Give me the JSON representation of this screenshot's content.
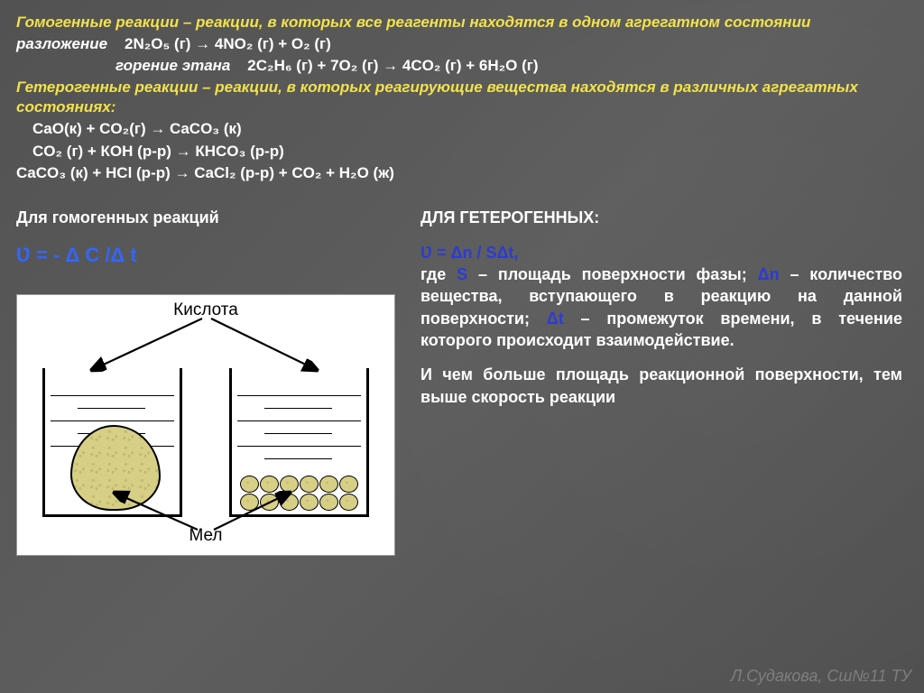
{
  "definitions": {
    "homo_title_prefix": "Гомогенные",
    "homo_title_rest": " реакции – реакции, в которых все реагенты находятся в одном агрегатном состоянии",
    "decomp_label": "разложение",
    "decomp_eq": "2N₂O₅ (г) → 4NO₂ (г) + O₂ (г)",
    "combust_label": "горение этана",
    "combust_eq": "2C₂H₆ (г) + 7O₂ (г) → 4CO₂ (г) + 6H₂O (г)",
    "hetero_title_prefix": "Гетерогенные",
    "hetero_title_rest": " реакции – реакции, в которых реагирующие вещества находятся в различных агрегатных состояниях:",
    "eq1": "CaO(к) + CO₂(г) → CaCO₃ (к)",
    "eq2": "CO₂ (г) + КОН (р-р) → КНСO₃ (р-р)",
    "eq3": "CaCO₃ (к) + HCl (р-р) → CaCl₂ (р-р) + CO₂ + H₂O (ж)"
  },
  "homo_section": {
    "title": "Для гомогенных реакций",
    "formula": "Ʋ = - Δ C /Δ t"
  },
  "hetero_section": {
    "title": "ДЛЯ ГЕТЕРОГЕННЫХ:",
    "formula": "Ʋ =  Δn / SΔt,",
    "explain_pre": "где",
    "s_label": "S",
    "s_desc": " – площадь поверхности фазы; ",
    "dn_label": "Δn",
    "dn_desc": " – количество вещества, вступающего в реакцию на данной поверхности; ",
    "dt_label": "Δt",
    "dt_desc": " – промежуток времени, в течение которого происходит взаимодействие.",
    "conclusion": "И чем больше площадь реакционной поверхности, тем выше скорость реакции"
  },
  "diagram": {
    "top_label": "Кислота",
    "bottom_label": "Мел",
    "pebble_count": 12,
    "colors": {
      "rock_fill": "#d6cf85",
      "rock_speck": "#c0b86e",
      "line": "#000000",
      "bg": "#ffffff"
    }
  },
  "watermark": "Л.Судакова, Сш№11 ТУ",
  "style": {
    "bg": "#5a5a5a",
    "yellow": "#f2e24a",
    "blue": "#2b3bd6",
    "formula_blue": "#3366ff",
    "title_fontsize": 17,
    "formula_fontsize": 22
  }
}
